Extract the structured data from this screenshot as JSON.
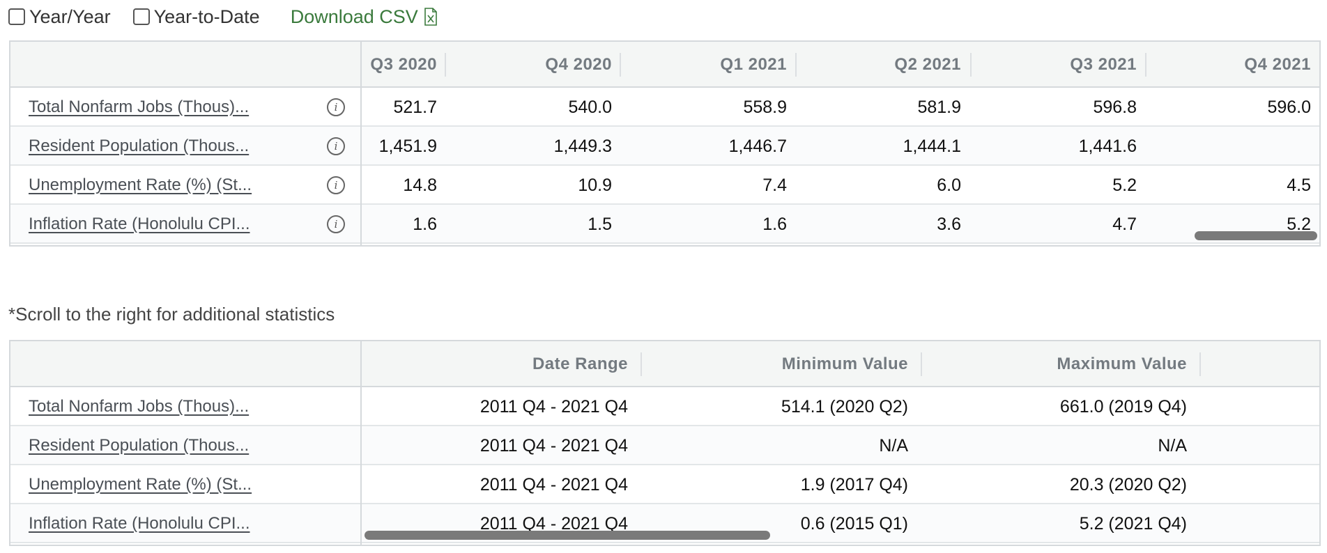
{
  "toolbar": {
    "year_year": "Year/Year",
    "ytd": "Year-to-Date",
    "download": "Download CSV"
  },
  "table1": {
    "columns": [
      "Q3 2020",
      "Q4 2020",
      "Q1 2021",
      "Q2 2021",
      "Q3 2021",
      "Q4 2021"
    ],
    "rows": [
      {
        "label": "Total Nonfarm Jobs (Thous)...",
        "values": [
          "521.7",
          "540.0",
          "558.9",
          "581.9",
          "596.8",
          "596.0"
        ]
      },
      {
        "label": "Resident Population (Thous...",
        "values": [
          "1,451.9",
          "1,449.3",
          "1,446.7",
          "1,444.1",
          "1,441.6",
          ""
        ]
      },
      {
        "label": "Unemployment Rate (%) (St...",
        "values": [
          "14.8",
          "10.9",
          "7.4",
          "6.0",
          "5.2",
          "4.5"
        ]
      },
      {
        "label": "Inflation Rate (Honolulu CPI...",
        "values": [
          "1.6",
          "1.5",
          "1.6",
          "3.6",
          "4.7",
          "5.2"
        ]
      }
    ]
  },
  "note": "*Scroll to the right for additional statistics",
  "table2": {
    "columns": [
      "Date Range",
      "Minimum Value",
      "Maximum Value"
    ],
    "rows": [
      {
        "label": "Total Nonfarm Jobs (Thous)...",
        "values": [
          "2011 Q4 - 2021 Q4",
          "514.1 (2020 Q2)",
          "661.0 (2019 Q4)"
        ]
      },
      {
        "label": "Resident Population (Thous...",
        "values": [
          "2011 Q4 - 2021 Q4",
          "N/A",
          "N/A"
        ]
      },
      {
        "label": "Unemployment Rate (%) (St...",
        "values": [
          "2011 Q4 - 2021 Q4",
          "1.9 (2017 Q4)",
          "20.3 (2020 Q2)"
        ]
      },
      {
        "label": "Inflation Rate (Honolulu CPI...",
        "values": [
          "2011 Q4 - 2021 Q4",
          "0.6 (2015 Q1)",
          "5.2 (2021 Q4)"
        ]
      }
    ]
  },
  "icons": {
    "info": "info-icon",
    "csv": "csv-file-icon"
  },
  "colors": {
    "download_green": "#3a7a3c",
    "header_bg": "#f4f6f5",
    "border": "#d5d9dc",
    "scrollbar": "#7a7a7a"
  }
}
